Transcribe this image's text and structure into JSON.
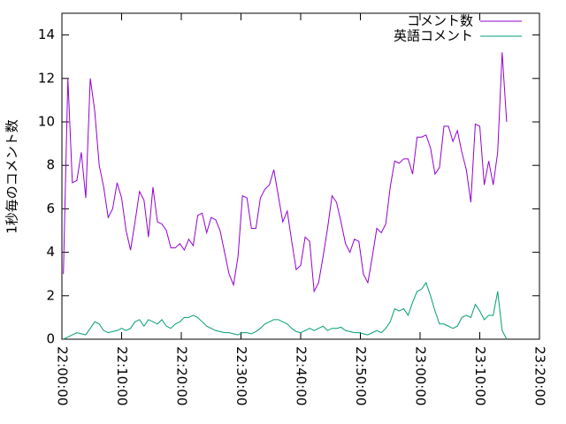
{
  "chart_data": {
    "type": "line",
    "ylabel": "1秒毎のコメント数",
    "x": [
      "22:00:15",
      "22:01:00",
      "22:01:45",
      "22:02:30",
      "22:03:15",
      "22:04:00",
      "22:04:45",
      "22:05:30",
      "22:06:15",
      "22:07:00",
      "22:07:45",
      "22:08:30",
      "22:09:15",
      "22:10:00",
      "22:10:45",
      "22:11:30",
      "22:12:15",
      "22:13:00",
      "22:13:45",
      "22:14:30",
      "22:15:15",
      "22:16:00",
      "22:16:45",
      "22:17:30",
      "22:18:15",
      "22:19:00",
      "22:19:45",
      "22:20:30",
      "22:21:15",
      "22:22:00",
      "22:22:45",
      "22:23:30",
      "22:24:15",
      "22:25:00",
      "22:25:45",
      "22:26:30",
      "22:27:15",
      "22:28:00",
      "22:28:45",
      "22:29:30",
      "22:30:15",
      "22:31:00",
      "22:31:45",
      "22:32:30",
      "22:33:15",
      "22:34:00",
      "22:34:45",
      "22:35:30",
      "22:36:15",
      "22:37:00",
      "22:37:45",
      "22:38:30",
      "22:39:15",
      "22:40:00",
      "22:40:45",
      "22:41:30",
      "22:42:15",
      "22:43:00",
      "22:43:45",
      "22:44:30",
      "22:45:15",
      "22:46:00",
      "22:46:45",
      "22:47:30",
      "22:48:15",
      "22:49:00",
      "22:49:45",
      "22:50:30",
      "22:51:15",
      "22:52:00",
      "22:52:45",
      "22:53:30",
      "22:54:15",
      "22:55:00",
      "22:55:45",
      "22:56:30",
      "22:57:15",
      "22:58:00",
      "22:58:45",
      "22:59:30",
      "23:00:15",
      "23:01:00",
      "23:01:45",
      "23:02:30",
      "23:03:15",
      "23:04:00",
      "23:04:45",
      "23:05:30",
      "23:06:15",
      "23:07:00",
      "23:07:45",
      "23:08:30",
      "23:09:15",
      "23:10:00",
      "23:10:45",
      "23:11:30",
      "23:12:15",
      "23:13:00",
      "23:13:45",
      "23:14:30"
    ],
    "series": [
      {
        "name": "コメント数",
        "color": "#9400d3",
        "values": [
          3,
          12,
          7.2,
          7.3,
          8.6,
          6.5,
          12,
          10.5,
          8,
          7,
          5.6,
          6,
          7.2,
          6.5,
          5,
          4.1,
          5.4,
          6.8,
          6.4,
          4.7,
          7,
          5.4,
          5.3,
          5,
          4.2,
          4.2,
          4.4,
          4.1,
          4.6,
          4.3,
          5.7,
          5.8,
          4.9,
          5.6,
          5.5,
          5,
          4,
          3,
          2.5,
          3.8,
          6.6,
          6.5,
          5.1,
          5.1,
          6.5,
          6.9,
          7.1,
          7.8,
          6.6,
          5.4,
          5.9,
          4.5,
          3.2,
          3.4,
          4.7,
          4.5,
          2.2,
          2.6,
          3.8,
          5.1,
          6.6,
          6.3,
          5.4,
          4.4,
          4,
          4.6,
          4.5,
          3,
          2.6,
          3.8,
          5.1,
          4.9,
          5.3,
          7,
          8.2,
          8.1,
          8.3,
          8.3,
          7.6,
          9.3,
          9.3,
          9.4,
          8.8,
          7.6,
          7.9,
          9.8,
          9.8,
          9.1,
          9.6,
          8.6,
          7.8,
          6.3,
          9.9,
          9.8,
          7.1,
          8.2,
          7.1,
          8.6,
          13.2,
          10
        ]
      },
      {
        "name": "英語コメント",
        "color": "#009e73",
        "values": [
          0,
          0.1,
          0.2,
          0.3,
          0.25,
          0.2,
          0.5,
          0.8,
          0.7,
          0.4,
          0.3,
          0.35,
          0.4,
          0.5,
          0.4,
          0.5,
          0.8,
          0.9,
          0.6,
          0.9,
          0.8,
          0.7,
          0.9,
          0.6,
          0.5,
          0.7,
          0.8,
          1.0,
          1.0,
          1.1,
          1.0,
          0.8,
          0.6,
          0.5,
          0.4,
          0.35,
          0.3,
          0.3,
          0.25,
          0.2,
          0.3,
          0.3,
          0.25,
          0.35,
          0.5,
          0.7,
          0.8,
          0.9,
          0.9,
          0.8,
          0.7,
          0.5,
          0.35,
          0.3,
          0.4,
          0.5,
          0.4,
          0.5,
          0.6,
          0.4,
          0.5,
          0.5,
          0.55,
          0.4,
          0.35,
          0.3,
          0.3,
          0.25,
          0.2,
          0.3,
          0.4,
          0.3,
          0.5,
          0.8,
          1.4,
          1.3,
          1.4,
          1.1,
          1.7,
          2.2,
          2.3,
          2.6,
          2.0,
          1.3,
          0.7,
          0.7,
          0.6,
          0.5,
          0.6,
          1.0,
          1.1,
          1.0,
          1.6,
          1.3,
          0.9,
          1.1,
          1.1,
          2.2,
          0.4,
          0
        ]
      }
    ],
    "xlim": [
      "22:00:00",
      "23:20:00"
    ],
    "xticks": [
      "22:00:00",
      "22:10:00",
      "22:20:00",
      "22:30:00",
      "22:40:00",
      "22:50:00",
      "23:00:00",
      "23:10:00",
      "23:20:00"
    ],
    "ylim": [
      0,
      15
    ],
    "yticks": [
      0,
      2,
      4,
      6,
      8,
      10,
      12,
      14
    ],
    "legend": "top-right"
  }
}
